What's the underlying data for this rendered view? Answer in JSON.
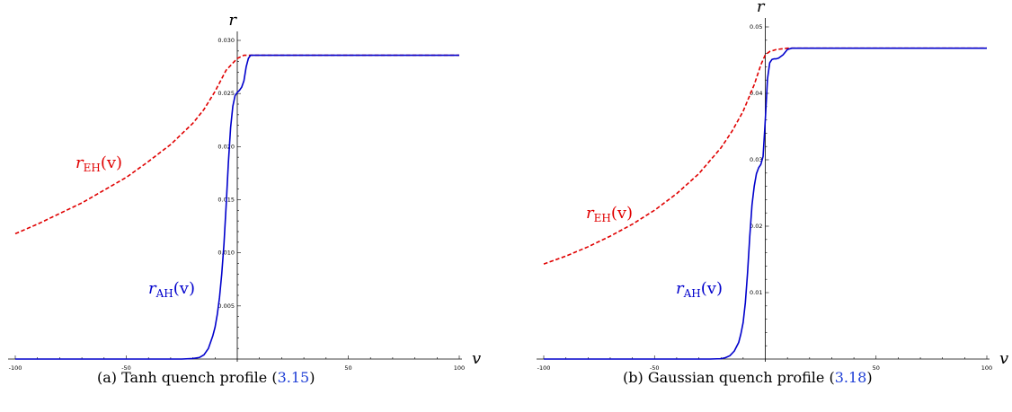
{
  "colors": {
    "eh": "#e00000",
    "ah": "#0000cc",
    "axis": "#000000",
    "ref": "#1f3fd6"
  },
  "captions": [
    {
      "prefix": "(a) Tanh quench profile (",
      "ref": "3.15",
      "suffix": ")"
    },
    {
      "prefix": "(b) Gaussian quench profile (",
      "ref": "3.18",
      "suffix": ")"
    }
  ],
  "chart_data": [
    {
      "type": "line",
      "xlabel": "v",
      "ylabel": "r",
      "xlim": [
        -100,
        100
      ],
      "ylim": [
        0,
        0.03
      ],
      "xticks": [
        -100,
        -50,
        0,
        50,
        100
      ],
      "xtick_labels": [
        "-100",
        "-50",
        "",
        "50",
        "100"
      ],
      "yticks": [
        0.005,
        0.01,
        0.015,
        0.02,
        0.025,
        0.03
      ],
      "ytick_labels": [
        "0.005",
        "0.010",
        "0.015",
        "0.020",
        "0.025",
        "0.030"
      ],
      "series": [
        {
          "name": "r_EH(v)",
          "label_main": "r",
          "label_sub": "EH",
          "label_arg": "(v)",
          "style": "dashed",
          "color": "#e00000",
          "x": [
            -100,
            -90,
            -80,
            -70,
            -60,
            -50,
            -40,
            -30,
            -20,
            -15,
            -10,
            -5,
            0,
            3,
            5,
            10,
            20,
            40,
            60,
            80,
            100
          ],
          "y": [
            0.0118,
            0.0127,
            0.0137,
            0.0147,
            0.0159,
            0.0171,
            0.0186,
            0.0202,
            0.0222,
            0.0235,
            0.0252,
            0.0272,
            0.0283,
            0.0286,
            0.0286,
            0.0286,
            0.0286,
            0.0286,
            0.0286,
            0.0286,
            0.0286
          ]
        },
        {
          "name": "r_AH(v)",
          "label_main": "r",
          "label_sub": "AH",
          "label_arg": "(v)",
          "style": "solid",
          "color": "#0000cc",
          "x": [
            -100,
            -50,
            -25,
            -20,
            -17,
            -15,
            -13,
            -11,
            -10,
            -9,
            -8,
            -7,
            -6,
            -5,
            -4,
            -3,
            -2,
            -1,
            0,
            1,
            2,
            3,
            4,
            5,
            6,
            7,
            8,
            10,
            20,
            40,
            60,
            80,
            100
          ],
          "y": [
            0,
            0,
            0,
            5e-05,
            0.00015,
            0.0004,
            0.001,
            0.0022,
            0.003,
            0.0042,
            0.0058,
            0.008,
            0.0108,
            0.0145,
            0.0185,
            0.0218,
            0.0238,
            0.0248,
            0.0251,
            0.0253,
            0.0256,
            0.0262,
            0.0275,
            0.0283,
            0.0286,
            0.0286,
            0.0286,
            0.0286,
            0.0286,
            0.0286,
            0.0286,
            0.0286,
            0.0286
          ]
        }
      ]
    },
    {
      "type": "line",
      "xlabel": "v",
      "ylabel": "r",
      "xlim": [
        -100,
        100
      ],
      "ylim": [
        0,
        0.05
      ],
      "xticks": [
        -100,
        -50,
        0,
        50,
        100
      ],
      "xtick_labels": [
        "-100",
        "-50",
        "",
        "50",
        "100"
      ],
      "yticks": [
        0.01,
        0.02,
        0.03,
        0.04,
        0.05
      ],
      "ytick_labels": [
        "0.01",
        "0.02",
        "0.03",
        "0.04",
        "0.05"
      ],
      "series": [
        {
          "name": "r_EH(v)",
          "label_main": "r",
          "label_sub": "EH",
          "label_arg": "(v)",
          "style": "dashed",
          "color": "#e00000",
          "x": [
            -100,
            -90,
            -80,
            -70,
            -60,
            -50,
            -40,
            -30,
            -20,
            -15,
            -10,
            -5,
            -2,
            0,
            2,
            5,
            10,
            20,
            40,
            60,
            80,
            100
          ],
          "y": [
            0.0143,
            0.0155,
            0.0169,
            0.0185,
            0.0203,
            0.0224,
            0.0249,
            0.0279,
            0.0318,
            0.0343,
            0.0373,
            0.0413,
            0.0443,
            0.0458,
            0.0463,
            0.0466,
            0.0468,
            0.0468,
            0.0468,
            0.0468,
            0.0468,
            0.0468
          ]
        },
        {
          "name": "r_AH(v)",
          "label_main": "r",
          "label_sub": "AH",
          "label_arg": "(v)",
          "style": "solid",
          "color": "#0000cc",
          "x": [
            -100,
            -50,
            -25,
            -20,
            -18,
            -16,
            -14,
            -12,
            -11,
            -10,
            -9,
            -8,
            -7,
            -6,
            -5,
            -4,
            -3,
            -2,
            -1,
            0,
            1,
            2,
            3,
            4,
            5,
            6,
            8,
            10,
            12,
            20,
            40,
            60,
            80,
            100
          ],
          "y": [
            0,
            0,
            0,
            5e-05,
            0.0002,
            0.0005,
            0.0012,
            0.0025,
            0.0038,
            0.0055,
            0.0085,
            0.013,
            0.0185,
            0.0232,
            0.026,
            0.0279,
            0.0288,
            0.0293,
            0.0305,
            0.036,
            0.0422,
            0.0446,
            0.0451,
            0.0452,
            0.0452,
            0.0453,
            0.0458,
            0.0466,
            0.0468,
            0.0468,
            0.0468,
            0.0468,
            0.0468,
            0.0468
          ]
        }
      ]
    }
  ]
}
